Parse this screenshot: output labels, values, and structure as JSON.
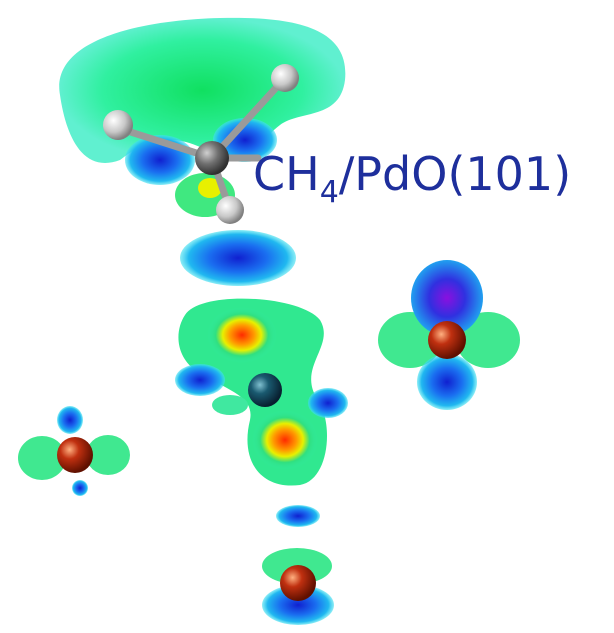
{
  "label": {
    "main": "CH",
    "subscript": "4",
    "rest": "/PdO(101)"
  }
}
